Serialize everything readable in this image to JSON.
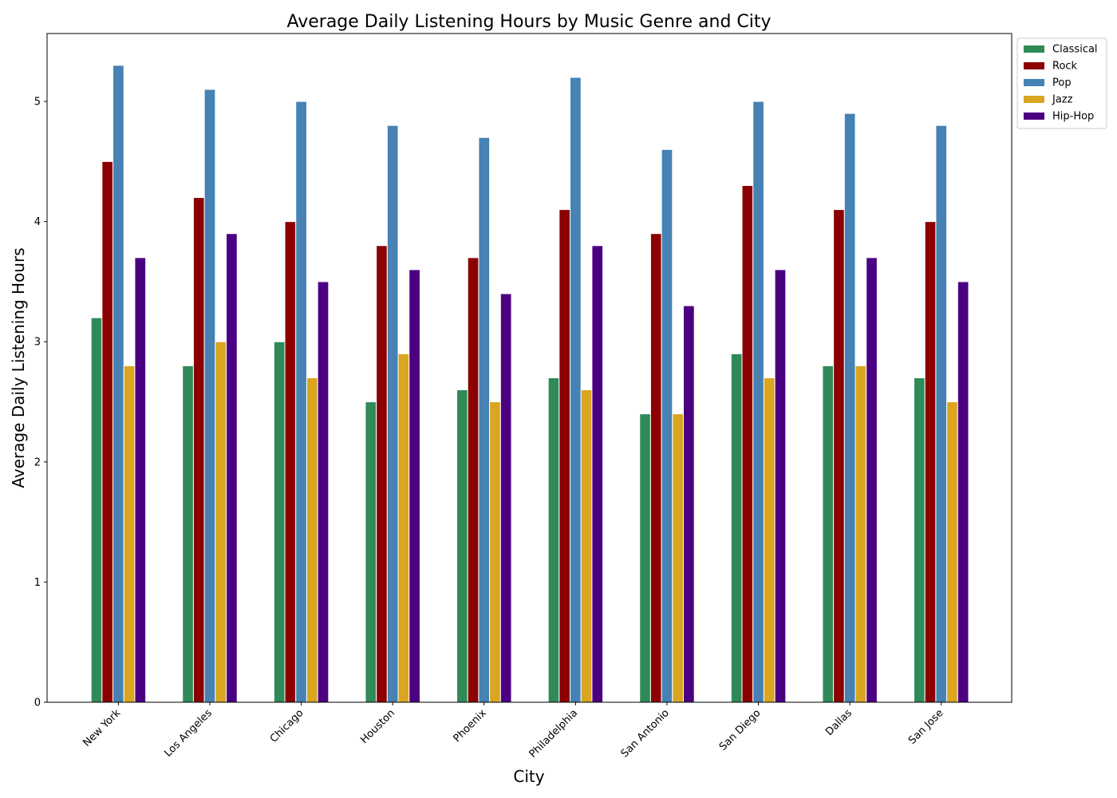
{
  "chart_data": {
    "type": "bar",
    "title": "Average Daily Listening Hours by Music Genre and City",
    "xlabel": "City",
    "ylabel": "Average Daily Listening Hours",
    "categories": [
      "New York",
      "Los Angeles",
      "Chicago",
      "Houston",
      "Phoenix",
      "Philadelphia",
      "San Antonio",
      "San Diego",
      "Dallas",
      "San Jose"
    ],
    "series": [
      {
        "name": "Classical",
        "color": "#2e8b57",
        "values": [
          3.2,
          2.8,
          3.0,
          2.5,
          2.6,
          2.7,
          2.4,
          2.9,
          2.8,
          2.7
        ]
      },
      {
        "name": "Rock",
        "color": "#8b0000",
        "values": [
          4.5,
          4.2,
          4.0,
          3.8,
          3.7,
          4.1,
          3.9,
          4.3,
          4.1,
          4.0
        ]
      },
      {
        "name": "Pop",
        "color": "#4682b4",
        "values": [
          5.3,
          5.1,
          5.0,
          4.8,
          4.7,
          5.2,
          4.6,
          5.0,
          4.9,
          4.8
        ]
      },
      {
        "name": "Jazz",
        "color": "#daa520",
        "values": [
          2.8,
          3.0,
          2.7,
          2.9,
          2.5,
          2.6,
          2.4,
          2.7,
          2.8,
          2.5
        ]
      },
      {
        "name": "Hip-Hop",
        "color": "#4b0082",
        "values": [
          3.7,
          3.9,
          3.5,
          3.6,
          3.4,
          3.8,
          3.3,
          3.6,
          3.7,
          3.5
        ]
      }
    ],
    "yticks": [
      "0",
      "1",
      "2",
      "3",
      "4",
      "5"
    ],
    "ylim": [
      0,
      5.565
    ],
    "grid": false,
    "legend_position": "upper-right-outside"
  }
}
